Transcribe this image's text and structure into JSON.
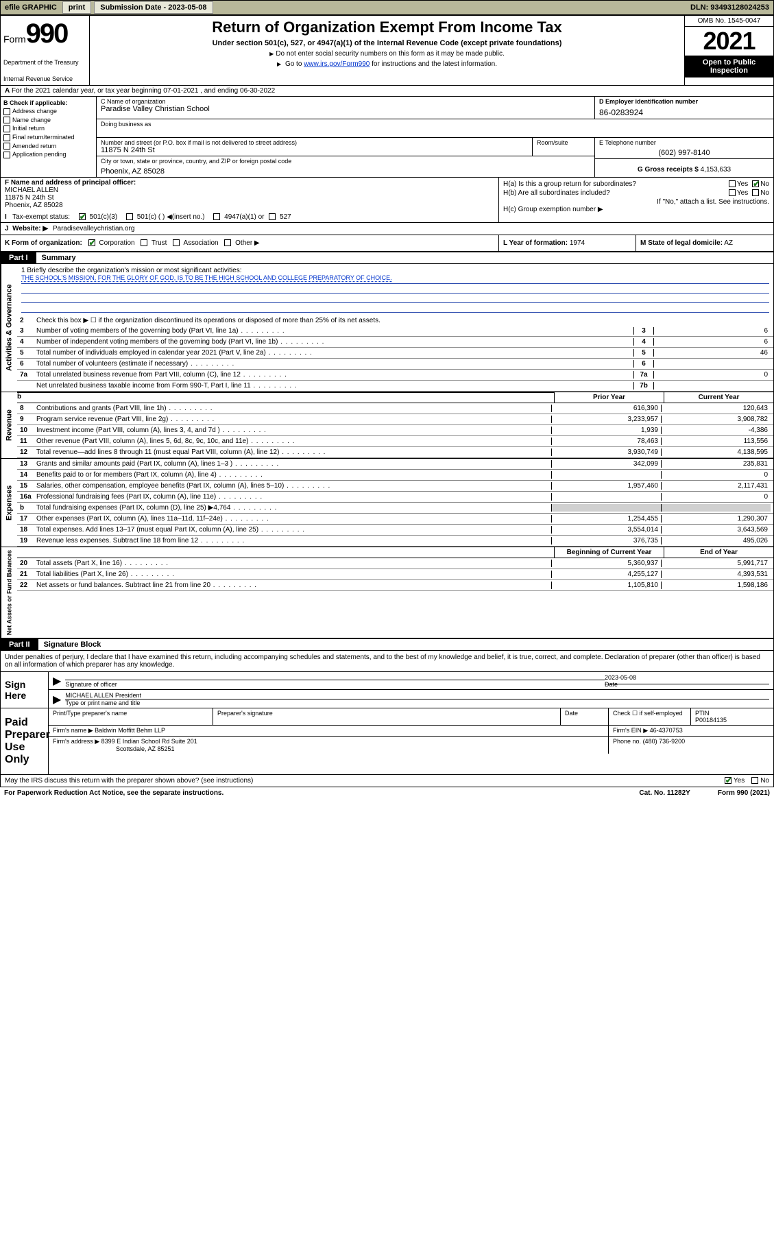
{
  "top_bar": {
    "efile": "efile GRAPHIC",
    "print": "print",
    "sub_label": "Submission Date - 2023-05-08",
    "dln": "DLN: 93493128024253"
  },
  "header": {
    "form_word": "Form",
    "form_num": "990",
    "title": "Return of Organization Exempt From Income Tax",
    "subtitle": "Under section 501(c), 527, or 4947(a)(1) of the Internal Revenue Code (except private foundations)",
    "nosocial": "Do not enter social security numbers on this form as it may be made public.",
    "goto_pre": "Go to ",
    "goto_link": "www.irs.gov/Form990",
    "goto_post": " for instructions and the latest information.",
    "omb": "OMB No. 1545-0047",
    "year": "2021",
    "open": "Open to Public Inspection",
    "dept": "Department of the Treasury",
    "irs": "Internal Revenue Service"
  },
  "row_a": "For the 2021 calendar year, or tax year beginning 07-01-2021   , and ending 06-30-2022",
  "col_b": {
    "label": "B Check if applicable:",
    "items": [
      "Address change",
      "Name change",
      "Initial return",
      "Final return/terminated",
      "Amended return",
      "Application pending"
    ]
  },
  "block_c": {
    "name_label": "C Name of organization",
    "name": "Paradise Valley Christian School",
    "dba_label": "Doing business as",
    "addr_label": "Number and street (or P.O. box if mail is not delivered to street address)",
    "addr": "11875 N 24th St",
    "room_label": "Room/suite",
    "city_label": "City or town, state or province, country, and ZIP or foreign postal code",
    "city": "Phoenix, AZ  85028"
  },
  "block_d": {
    "label": "D Employer identification number",
    "val": "86-0283924"
  },
  "block_e": {
    "label": "E Telephone number",
    "val": "(602) 997-8140"
  },
  "block_g": {
    "label": "G Gross receipts $",
    "val": "4,153,633"
  },
  "block_f": {
    "label": "F  Name and address of principal officer:",
    "name": "MICHAEL ALLEN",
    "addr1": "11875 N 24th St",
    "addr2": "Phoenix, AZ  85028"
  },
  "block_h": {
    "a_label": "H(a)  Is this a group return for subordinates?",
    "b_label": "H(b)  Are all subordinates included?",
    "b_note": "If \"No,\" attach a list. See instructions.",
    "c_label": "H(c)  Group exemption number ▶",
    "yes": "Yes",
    "no": "No"
  },
  "row_i": {
    "label": "Tax-exempt status:",
    "opts": [
      "501(c)(3)",
      "501(c) (  ) ◀(insert no.)",
      "4947(a)(1) or",
      "527"
    ]
  },
  "row_j": {
    "label": "Website: ▶",
    "val": "Paradisevalleychristian.org"
  },
  "row_k": {
    "label": "K Form of organization:",
    "opts": [
      "Corporation",
      "Trust",
      "Association",
      "Other ▶"
    ]
  },
  "row_l": {
    "label": "L Year of formation:",
    "val": "1974"
  },
  "row_m": {
    "label": "M State of legal domicile:",
    "val": "AZ"
  },
  "part1": {
    "num": "Part I",
    "title": "Summary"
  },
  "summary": {
    "gov_label": "Activities & Governance",
    "q1_label": "1  Briefly describe the organization's mission or most significant activities:",
    "q1_text": "THE SCHOOL'S MISSION, FOR THE GLORY OF GOD, IS TO BE THE HIGH SCHOOL AND COLLEGE PREPARATORY OF CHOICE.",
    "q2": "Check this box ▶ ☐  if the organization discontinued its operations or disposed of more than 25% of its net assets.",
    "lines_single": [
      {
        "n": "3",
        "t": "Number of voting members of the governing body (Part VI, line 1a)",
        "k": "3",
        "v": "6"
      },
      {
        "n": "4",
        "t": "Number of independent voting members of the governing body (Part VI, line 1b)",
        "k": "4",
        "v": "6"
      },
      {
        "n": "5",
        "t": "Total number of individuals employed in calendar year 2021 (Part V, line 2a)",
        "k": "5",
        "v": "46"
      },
      {
        "n": "6",
        "t": "Total number of volunteers (estimate if necessary)",
        "k": "6",
        "v": ""
      },
      {
        "n": "7a",
        "t": "Total unrelated business revenue from Part VIII, column (C), line 12",
        "k": "7a",
        "v": "0"
      },
      {
        "n": "",
        "t": "Net unrelated business taxable income from Form 990-T, Part I, line 11",
        "k": "7b",
        "v": ""
      }
    ],
    "rev_label": "Revenue",
    "hdr_prior": "Prior Year",
    "hdr_curr": "Current Year",
    "rev_lines": [
      {
        "n": "8",
        "t": "Contributions and grants (Part VIII, line 1h)",
        "p": "616,390",
        "c": "120,643"
      },
      {
        "n": "9",
        "t": "Program service revenue (Part VIII, line 2g)",
        "p": "3,233,957",
        "c": "3,908,782"
      },
      {
        "n": "10",
        "t": "Investment income (Part VIII, column (A), lines 3, 4, and 7d )",
        "p": "1,939",
        "c": "-4,386"
      },
      {
        "n": "11",
        "t": "Other revenue (Part VIII, column (A), lines 5, 6d, 8c, 9c, 10c, and 11e)",
        "p": "78,463",
        "c": "113,556"
      },
      {
        "n": "12",
        "t": "Total revenue—add lines 8 through 11 (must equal Part VIII, column (A), line 12)",
        "p": "3,930,749",
        "c": "4,138,595"
      }
    ],
    "exp_label": "Expenses",
    "exp_lines": [
      {
        "n": "13",
        "t": "Grants and similar amounts paid (Part IX, column (A), lines 1–3 )",
        "p": "342,099",
        "c": "235,831"
      },
      {
        "n": "14",
        "t": "Benefits paid to or for members (Part IX, column (A), line 4)",
        "p": "",
        "c": "0"
      },
      {
        "n": "15",
        "t": "Salaries, other compensation, employee benefits (Part IX, column (A), lines 5–10)",
        "p": "1,957,460",
        "c": "2,117,431"
      },
      {
        "n": "16a",
        "t": "Professional fundraising fees (Part IX, column (A), line 11e)",
        "p": "",
        "c": "0"
      },
      {
        "n": "b",
        "t": "Total fundraising expenses (Part IX, column (D), line 25) ▶4,764",
        "p": "shaded",
        "c": "shaded"
      },
      {
        "n": "17",
        "t": "Other expenses (Part IX, column (A), lines 11a–11d, 11f–24e)",
        "p": "1,254,455",
        "c": "1,290,307"
      },
      {
        "n": "18",
        "t": "Total expenses. Add lines 13–17 (must equal Part IX, column (A), line 25)",
        "p": "3,554,014",
        "c": "3,643,569"
      },
      {
        "n": "19",
        "t": "Revenue less expenses. Subtract line 18 from line 12",
        "p": "376,735",
        "c": "495,026"
      }
    ],
    "na_label": "Net Assets or Fund Balances",
    "hdr_beg": "Beginning of Current Year",
    "hdr_end": "End of Year",
    "na_lines": [
      {
        "n": "20",
        "t": "Total assets (Part X, line 16)",
        "p": "5,360,937",
        "c": "5,991,717"
      },
      {
        "n": "21",
        "t": "Total liabilities (Part X, line 26)",
        "p": "4,255,127",
        "c": "4,393,531"
      },
      {
        "n": "22",
        "t": "Net assets or fund balances. Subtract line 21 from line 20",
        "p": "1,105,810",
        "c": "1,598,186"
      }
    ]
  },
  "part2": {
    "num": "Part II",
    "title": "Signature Block"
  },
  "sig": {
    "declare": "Under penalties of perjury, I declare that I have examined this return, including accompanying schedules and statements, and to the best of my knowledge and belief, it is true, correct, and complete. Declaration of preparer (other than officer) is based on all information of which preparer has any knowledge.",
    "sign_here": "Sign Here",
    "sig_officer": "Signature of officer",
    "date": "Date",
    "sig_date": "2023-05-08",
    "officer_name": "MICHAEL ALLEN  President",
    "type_name": "Type or print name and title",
    "paid_label": "Paid Preparer Use Only",
    "prep_name_label": "Print/Type preparer's name",
    "prep_sig_label": "Preparer's signature",
    "check_self": "Check ☐ if self-employed",
    "ptin_label": "PTIN",
    "ptin": "P00184135",
    "firm_name_label": "Firm's name    ▶",
    "firm_name": "Baldwin Moffitt Behm LLP",
    "firm_ein_label": "Firm's EIN ▶",
    "firm_ein": "46-4370753",
    "firm_addr_label": "Firm's address ▶",
    "firm_addr1": "8399 E Indian School Rd Suite 201",
    "firm_addr2": "Scottsdale, AZ  85251",
    "phone_label": "Phone no.",
    "phone": "(480) 736-9200"
  },
  "footer": {
    "may_irs": "May the IRS discuss this return with the preparer shown above? (see instructions)",
    "yes": "Yes",
    "no": "No",
    "pra": "For Paperwork Reduction Act Notice, see the separate instructions.",
    "cat": "Cat. No. 11282Y",
    "form": "Form 990 (2021)"
  }
}
